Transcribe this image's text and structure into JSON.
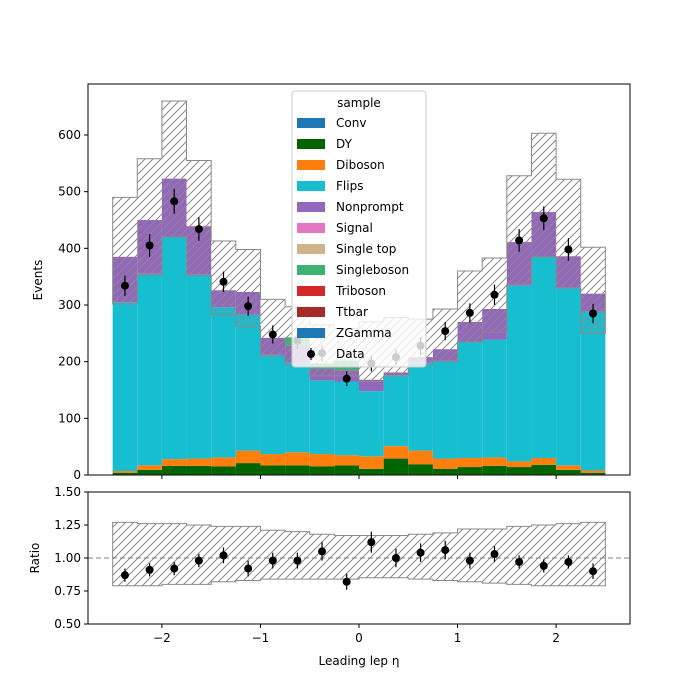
{
  "chart_data": [
    {
      "type": "bar",
      "stacked": true,
      "ylabel": "Events",
      "xlim": [
        -2.75,
        2.75
      ],
      "ylim": [
        0,
        690
      ],
      "x_ticks": [
        -2,
        -1,
        0,
        1,
        2
      ],
      "x_tick_labels": [
        "−2",
        "−1",
        "0",
        "1",
        "2"
      ],
      "y_ticks": [
        0,
        100,
        200,
        300,
        400,
        500,
        600
      ],
      "bin_edges": [
        -2.5,
        -2.25,
        -2.0,
        -1.75,
        -1.5,
        -1.25,
        -1.0,
        -0.75,
        -0.5,
        -0.25,
        0.0,
        0.25,
        0.5,
        0.75,
        1.0,
        1.25,
        1.5,
        1.75,
        2.0,
        2.25,
        2.5
      ],
      "legend": {
        "title": "sample",
        "placement": "upper center",
        "entries": [
          "Conv",
          "DY",
          "Diboson",
          "Flips",
          "Nonprompt",
          "Signal",
          "Single top",
          "Singleboson",
          "Triboson",
          "Ttbar",
          "ZGamma",
          "Data"
        ]
      },
      "series": [
        {
          "name": "Conv",
          "color": "#1f77b4",
          "values": [
            1,
            1,
            1,
            1,
            1,
            1,
            1,
            1,
            1,
            1,
            1,
            1,
            1,
            1,
            1,
            1,
            1,
            1,
            1,
            1
          ]
        },
        {
          "name": "DY",
          "color": "#006400",
          "values": [
            3,
            8,
            15,
            15,
            14,
            20,
            16,
            16,
            14,
            16,
            10,
            28,
            18,
            10,
            13,
            15,
            13,
            17,
            8,
            3
          ]
        },
        {
          "name": "Diboson",
          "color": "#ff7f0e",
          "values": [
            3,
            8,
            12,
            13,
            16,
            22,
            20,
            23,
            22,
            18,
            22,
            22,
            24,
            18,
            16,
            15,
            10,
            12,
            8,
            4
          ]
        },
        {
          "name": "Flips",
          "color": "#17becf",
          "values": [
            298,
            338,
            392,
            325,
            265,
            240,
            175,
            158,
            130,
            130,
            115,
            125,
            155,
            173,
            205,
            208,
            310,
            355,
            314,
            280
          ]
        },
        {
          "name": "Nonprompt",
          "color": "#9467bd",
          "values": [
            80,
            95,
            103,
            85,
            30,
            40,
            30,
            30,
            20,
            20,
            20,
            5,
            10,
            20,
            35,
            54,
            77,
            79,
            55,
            32
          ]
        },
        {
          "name": "Signal",
          "color": "#e377c2",
          "values": [
            0,
            0,
            0,
            0,
            0,
            0,
            0,
            0,
            0,
            0,
            0,
            0,
            0,
            0,
            0,
            0,
            0,
            0,
            0,
            0
          ]
        },
        {
          "name": "Single top",
          "color": "#d2b48c",
          "values": [
            0,
            0,
            0,
            0,
            0,
            0,
            0,
            0,
            0,
            0,
            0,
            0,
            0,
            0,
            0,
            0,
            0,
            0,
            0,
            0
          ]
        },
        {
          "name": "Singleboson",
          "color": "#3cb371",
          "values": [
            0,
            0,
            0,
            0,
            0,
            0,
            0,
            15,
            10,
            17,
            0,
            0,
            0,
            0,
            0,
            0,
            0,
            0,
            0,
            0
          ]
        },
        {
          "name": "Triboson",
          "color": "#d62728",
          "values": [
            0,
            0,
            0,
            0,
            0,
            0,
            0,
            0,
            0,
            0,
            0,
            0,
            0,
            0,
            0,
            0,
            0,
            0,
            0,
            0
          ]
        },
        {
          "name": "Ttbar",
          "color": "#a52a2a",
          "values": [
            0,
            0,
            0,
            0,
            0,
            0,
            0,
            0,
            0,
            0,
            0,
            0,
            0,
            0,
            0,
            0,
            0,
            0,
            0,
            0
          ]
        },
        {
          "name": "ZGamma",
          "color": "#1f77b4",
          "values": [
            0,
            0,
            0,
            0,
            0,
            0,
            0,
            0,
            0,
            0,
            0,
            0,
            0,
            0,
            0,
            0,
            0,
            0,
            0,
            0
          ]
        }
      ],
      "uncertainty_band": {
        "up": [
          490,
          558,
          660,
          555,
          413,
          398,
          310,
          297,
          265,
          258,
          270,
          278,
          275,
          293,
          360,
          383,
          528,
          603,
          522,
          402
        ],
        "down": [
          302,
          352,
          420,
          352,
          283,
          262,
          210,
          195,
          175,
          175,
          165,
          175,
          195,
          200,
          235,
          252,
          337,
          385,
          330,
          250
        ]
      },
      "data_points": {
        "name": "Data",
        "x": [
          -2.375,
          -2.125,
          -1.875,
          -1.625,
          -1.375,
          -1.125,
          -0.875,
          -0.625,
          -0.375,
          -0.125,
          0.125,
          0.375,
          0.625,
          0.875,
          1.125,
          1.375,
          1.625,
          1.875,
          2.125,
          2.375
        ],
        "y": [
          334,
          405,
          483,
          434,
          341,
          298,
          248,
          237,
          215,
          170,
          197,
          208,
          228,
          254,
          286,
          318,
          414,
          453,
          398,
          285
        ],
        "yerr": [
          18,
          20,
          22,
          21,
          18,
          17,
          16,
          15,
          15,
          13,
          14,
          14,
          15,
          16,
          17,
          18,
          20,
          21,
          20,
          17
        ]
      }
    },
    {
      "type": "scatter",
      "xlabel": "Leading lep η",
      "ylabel": "Ratio",
      "xlim": [
        -2.75,
        2.75
      ],
      "ylim": [
        0.5,
        1.5
      ],
      "x_ticks": [
        -2,
        -1,
        0,
        1,
        2
      ],
      "x_tick_labels": [
        "−2",
        "−1",
        "0",
        "1",
        "2"
      ],
      "y_ticks": [
        0.5,
        0.75,
        1.0,
        1.25,
        1.5
      ],
      "y_tick_labels": [
        "0.50",
        "0.75",
        "1.00",
        "1.25",
        "1.50"
      ],
      "reference_line": 1.0,
      "x": [
        -2.375,
        -2.125,
        -1.875,
        -1.625,
        -1.375,
        -1.125,
        -0.875,
        -0.625,
        -0.375,
        -0.125,
        0.125,
        0.375,
        0.625,
        0.875,
        1.125,
        1.375,
        1.625,
        1.875,
        2.125,
        2.375
      ],
      "values": [
        0.87,
        0.91,
        0.92,
        0.98,
        1.02,
        0.92,
        0.98,
        0.98,
        1.05,
        0.82,
        1.12,
        1.0,
        1.04,
        1.06,
        0.98,
        1.03,
        0.97,
        0.94,
        0.97,
        0.9
      ],
      "yerr": [
        0.05,
        0.05,
        0.05,
        0.05,
        0.06,
        0.06,
        0.06,
        0.06,
        0.07,
        0.06,
        0.08,
        0.07,
        0.07,
        0.07,
        0.06,
        0.06,
        0.05,
        0.05,
        0.05,
        0.06
      ],
      "band_up": [
        1.27,
        1.26,
        1.26,
        1.25,
        1.24,
        1.24,
        1.21,
        1.2,
        1.18,
        1.17,
        1.17,
        1.17,
        1.18,
        1.19,
        1.22,
        1.22,
        1.24,
        1.25,
        1.26,
        1.27
      ],
      "band_down": [
        0.79,
        0.79,
        0.8,
        0.8,
        0.82,
        0.83,
        0.84,
        0.84,
        0.84,
        0.84,
        0.85,
        0.85,
        0.84,
        0.83,
        0.82,
        0.81,
        0.8,
        0.79,
        0.79,
        0.79
      ]
    }
  ]
}
